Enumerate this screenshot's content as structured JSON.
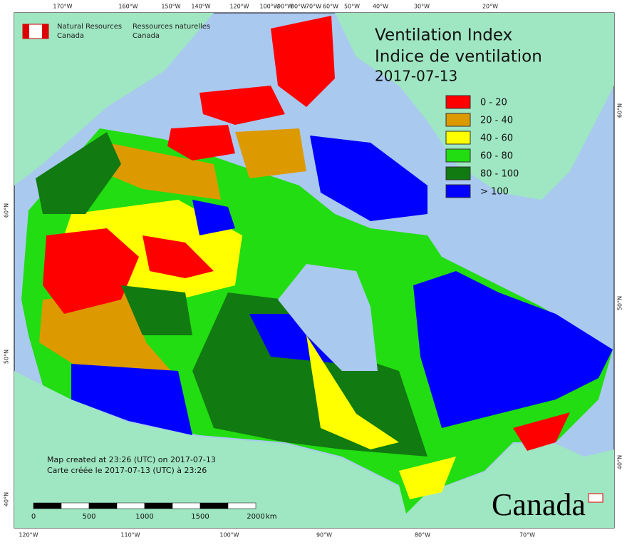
{
  "logo": {
    "en_line1": "Natural Resources",
    "en_line2": "Canada",
    "fr_line1": "Ressources naturelles",
    "fr_line2": "Canada"
  },
  "title": {
    "line1": "Ventilation Index",
    "line2": "Indice de ventilation",
    "date": "2017-07-13"
  },
  "legend": [
    {
      "label": "0 - 20",
      "color": "#ff0000"
    },
    {
      "label": "20 - 40",
      "color": "#dd9a00"
    },
    {
      "label": "40 - 60",
      "color": "#ffff00"
    },
    {
      "label": "60 - 80",
      "color": "#22dd11"
    },
    {
      "label": "80 - 100",
      "color": "#117a11"
    },
    {
      "label": "> 100",
      "color": "#0000ff"
    }
  ],
  "top_labels": [
    "170°W",
    "160°W",
    "150°W",
    "140°W",
    "120°W",
    "100°W",
    "90°W",
    "80°W",
    "70°W",
    "60°W",
    "50°W",
    "40°W",
    "30°W",
    "20°W"
  ],
  "bottom_labels": [
    "120°W",
    "110°W",
    "100°W",
    "90°W",
    "80°W",
    "70°W"
  ],
  "left_labels": [
    "60°N",
    "50°N",
    "40°N"
  ],
  "right_labels": [
    "60°N",
    "50°N",
    "40°N"
  ],
  "footer": {
    "line1": "Map created at 23:26 (UTC) on 2017-07-13",
    "line2": "Carte créée le 2017-07-13 (UTC) à 23:26"
  },
  "scale_bar": {
    "ticks": [
      "0",
      "500",
      "1000",
      "1500",
      "2000"
    ],
    "unit": "km"
  },
  "wordmark": "Canada"
}
